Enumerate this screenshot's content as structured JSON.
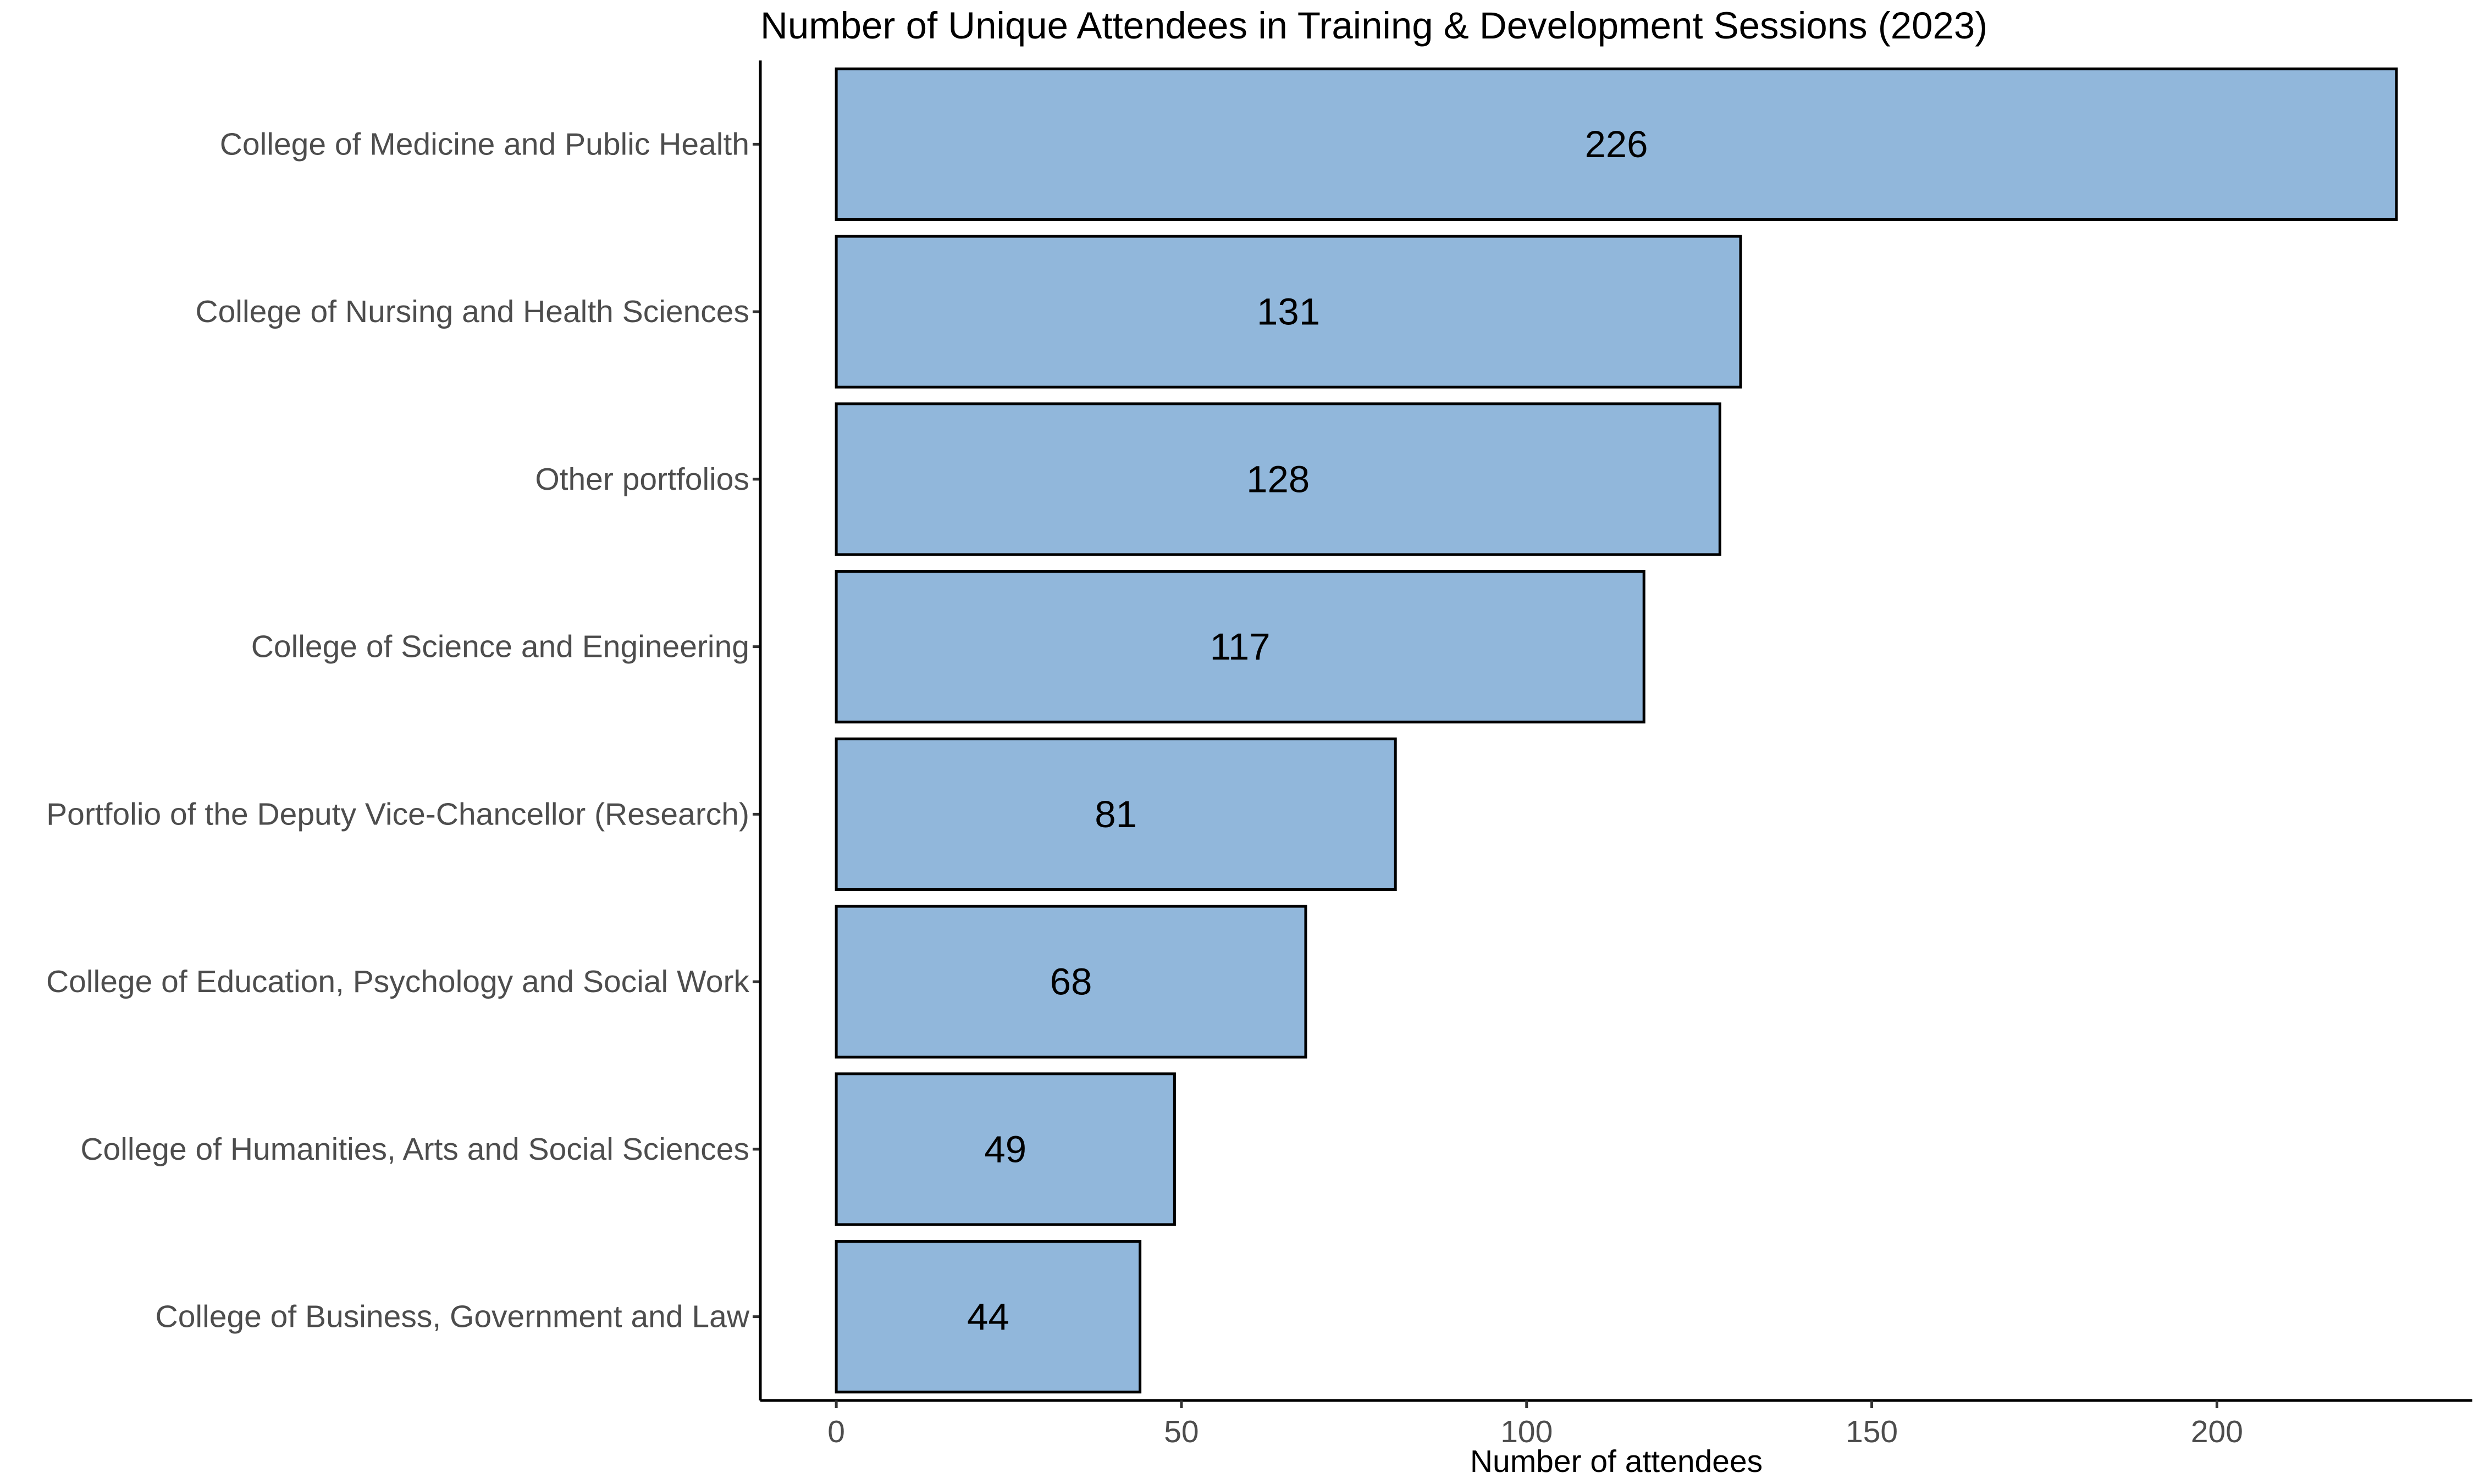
{
  "chart_data": {
    "type": "bar",
    "orientation": "horizontal",
    "title": "Number of Unique Attendees in Training & Development Sessions (2023)",
    "xlabel": "Number of attendees",
    "ylabel": "",
    "categories": [
      "College of Medicine and Public Health",
      "College of Nursing and Health Sciences",
      "Other portfolios",
      "College of Science and Engineering",
      "Portfolio of the Deputy Vice-Chancellor (Research)",
      "College of Education, Psychology and Social Work",
      "College of Humanities, Arts and Social Sciences",
      "College of Business, Government and Law"
    ],
    "values": [
      226,
      131,
      128,
      117,
      81,
      68,
      49,
      44
    ],
    "data_labels": [
      "226",
      "131",
      "128",
      "117",
      "81",
      "68",
      "49",
      "44"
    ],
    "xlim": [
      -11,
      237
    ],
    "x_ticks": [
      0,
      50,
      100,
      150,
      200
    ],
    "x_tick_labels": [
      "0",
      "50",
      "100",
      "150",
      "200"
    ],
    "grid": false,
    "legend": "none",
    "colors": {
      "bar_fill": "#91b7db",
      "bar_stroke": "#000000",
      "text": "#000000",
      "tick_text": "#4d4d4d",
      "background": "#ffffff"
    }
  }
}
